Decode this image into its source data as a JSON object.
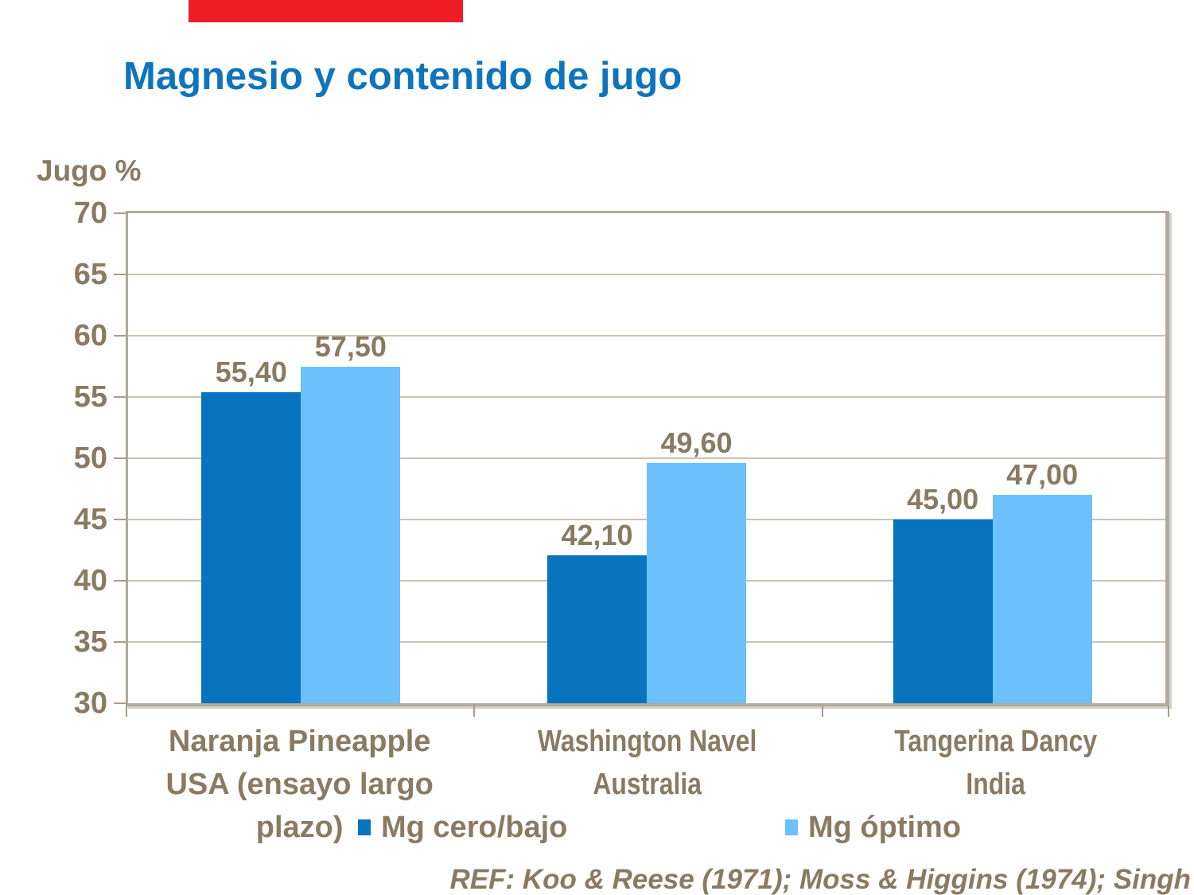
{
  "page": {
    "accent_bar_color": "#ee1c25",
    "title_color": "#0d74bd",
    "text_color": "#8a7a62",
    "frame_color": "#b2a89b",
    "gridline_color": "#ccc2b4"
  },
  "chart_data": {
    "type": "bar",
    "title": "Magnesio y contenido de jugo",
    "ylabel": "Jugo %",
    "xlabel": "",
    "ylim": [
      30,
      70
    ],
    "ytick_step": 5,
    "grid": true,
    "legend_position": "bottom",
    "categories": [
      [
        "Naranja Pineapple",
        "USA (ensayo largo plazo)"
      ],
      [
        "Washington Navel",
        "Australia"
      ],
      [
        "Tangerina Dancy",
        "India"
      ]
    ],
    "series": [
      {
        "name": "Mg cero/bajo",
        "color": "#0873be",
        "values": [
          55.4,
          42.1,
          45.0
        ],
        "labels": [
          "55,40",
          "42,10",
          "45,00"
        ]
      },
      {
        "name": "Mg óptimo",
        "color": "#6cc0fb",
        "values": [
          57.5,
          49.6,
          47.0
        ],
        "labels": [
          "57,50",
          "49,60",
          "47,00"
        ]
      }
    ]
  },
  "footer": {
    "ref": "REF: Koo & Reese (1971); Moss & Higgins (1974); Singh"
  }
}
